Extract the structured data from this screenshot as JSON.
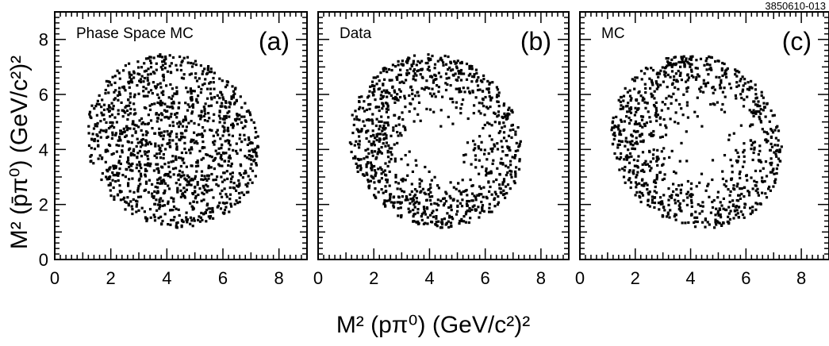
{
  "figure_id": "3850610-013",
  "y_axis_label": "M² (p̄π⁰) (GeV/c²)²",
  "x_axis_label": "M² (pπ⁰) (GeV/c²)²",
  "chart_data": [
    {
      "type": "scatter",
      "panel_tag": "(a)",
      "legend": "Phase Space MC",
      "xlim": [
        0,
        9
      ],
      "ylim": [
        0,
        9
      ],
      "xticks": [
        0,
        2,
        4,
        6,
        8
      ],
      "yticks": [
        0,
        2,
        4,
        6,
        8
      ],
      "point_color": "#000000",
      "density_profile": "uniform",
      "points": []
    },
    {
      "type": "scatter",
      "panel_tag": "(b)",
      "legend": "Data",
      "xlim": [
        0,
        9
      ],
      "ylim": [
        0,
        9
      ],
      "xticks": [
        0,
        2,
        4,
        6,
        8
      ],
      "yticks": [
        0,
        2,
        4,
        6,
        8
      ],
      "point_color": "#000000",
      "density_profile": "ring",
      "points": []
    },
    {
      "type": "scatter",
      "panel_tag": "(c)",
      "legend": "MC",
      "xlim": [
        0,
        9
      ],
      "ylim": [
        0,
        9
      ],
      "xticks": [
        0,
        2,
        4,
        6,
        8
      ],
      "yticks": [
        0,
        2,
        4,
        6,
        8
      ],
      "point_color": "#000000",
      "density_profile": "ring",
      "points": []
    }
  ]
}
